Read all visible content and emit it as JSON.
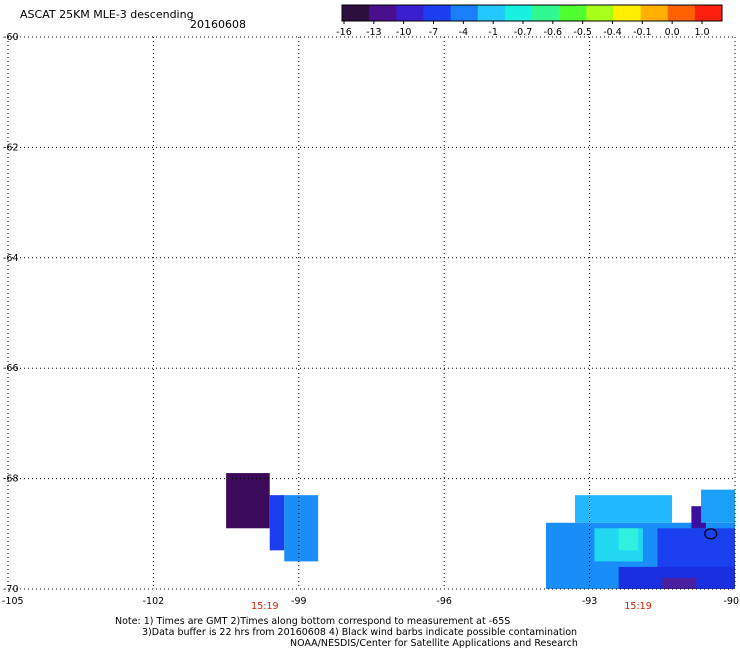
{
  "header": {
    "title": "ASCAT 25KM MLE-3 descending",
    "date": "20160608"
  },
  "colorbar": {
    "labels": [
      "-16",
      "-13",
      "-10",
      "-7",
      "-4",
      "-1",
      "-0.7",
      "-0.6",
      "-0.5",
      "-0.4",
      "-0.1",
      "0.0",
      "1.0"
    ],
    "colors": [
      "#2b0f3c",
      "#4a0f8c",
      "#3a1fd0",
      "#1a3ef0",
      "#1a7ef8",
      "#22c8ff",
      "#18f0e0",
      "#30f890",
      "#50ff30",
      "#a8ff18",
      "#fff000",
      "#ffb000",
      "#ff6000",
      "#ff2010"
    ]
  },
  "chart_data": {
    "type": "heatmap",
    "title": "ASCAT 25KM MLE-3 descending",
    "subtitle": "20160608",
    "xlim": [
      -105,
      -90
    ],
    "ylim": [
      -70,
      -60
    ],
    "x_ticks": [
      "-105",
      "-102",
      "-99",
      "-96",
      "-93",
      "-90"
    ],
    "y_ticks": [
      "-60",
      "-62",
      "-64",
      "-66",
      "-68",
      "-70"
    ],
    "time_labels": [
      {
        "lon": -99.7,
        "text": "15:19"
      },
      {
        "lon": -92.0,
        "text": "15:19"
      }
    ],
    "cells": [
      {
        "lon": [
          -100.5,
          -99.6
        ],
        "lat": [
          -68.9,
          -67.9
        ],
        "color": "#3c0a5a"
      },
      {
        "lon": [
          -99.6,
          -99.3
        ],
        "lat": [
          -69.3,
          -68.3
        ],
        "color": "#1a3ef0"
      },
      {
        "lon": [
          -99.3,
          -98.6
        ],
        "lat": [
          -69.5,
          -68.3
        ],
        "color": "#1a8ef8"
      },
      {
        "lon": [
          -93.9,
          -90.0
        ],
        "lat": [
          -70.0,
          -68.8
        ],
        "color": "#1a8ef8"
      },
      {
        "lon": [
          -93.3,
          -91.3
        ],
        "lat": [
          -68.8,
          -68.3
        ],
        "color": "#22b8ff"
      },
      {
        "lon": [
          -92.9,
          -91.9
        ],
        "lat": [
          -69.5,
          -68.9
        ],
        "color": "#22d8f0"
      },
      {
        "lon": [
          -92.4,
          -92.0
        ],
        "lat": [
          -69.3,
          -68.9
        ],
        "color": "#30f0e0"
      },
      {
        "lon": [
          -91.6,
          -90.0
        ],
        "lat": [
          -70.0,
          -68.9
        ],
        "color": "#1a40f0"
      },
      {
        "lon": [
          -92.4,
          -90.0
        ],
        "lat": [
          -70.0,
          -69.6
        ],
        "color": "#1a30e0"
      },
      {
        "lon": [
          -91.5,
          -90.8
        ],
        "lat": [
          -70.0,
          -69.8
        ],
        "color": "#4a1fa0"
      },
      {
        "lon": [
          -90.9,
          -90.6
        ],
        "lat": [
          -68.9,
          -68.5
        ],
        "color": "#3a10a0"
      },
      {
        "lon": [
          -90.7,
          -90.0
        ],
        "lat": [
          -68.8,
          -68.2
        ],
        "color": "#1aa0f8"
      }
    ],
    "contamination_marker": {
      "lon": -90.5,
      "lat": -69.0
    }
  },
  "notes": {
    "line1": "Note: 1) Times are GMT 2)Times along bottom correspond to measurement at -65S",
    "line2": "3)Data buffer is 22 hrs from 20160608 4) Black wind barbs indicate possible contamination",
    "line3": "NOAA/NESDIS/Center for Satellite Applications and Research"
  }
}
